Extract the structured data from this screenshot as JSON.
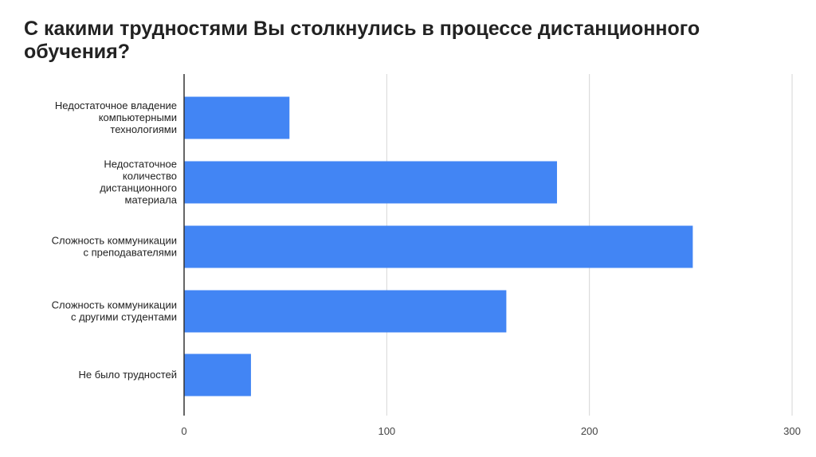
{
  "chart_data": {
    "type": "bar",
    "orientation": "horizontal",
    "title": "С какими трудностями Вы столкнулись в процессе дистанционного обучения?",
    "categories": [
      "Недостаточное владение компьютерными технологиями",
      "Недостаточное количество дистанционного материала",
      "Сложность коммуникации с преподавателями",
      "Сложность коммуникации с другими студентами",
      "Не было трудностей"
    ],
    "category_lines": [
      [
        "Недостаточное владение",
        "компьютерными",
        "технологиями"
      ],
      [
        "Недостаточное",
        "количество",
        "дистанционного",
        "материала"
      ],
      [
        "Сложность коммуникации",
        "с преподавателями"
      ],
      [
        "Сложность коммуникации",
        "с другими студентами"
      ],
      [
        "Не было трудностей"
      ]
    ],
    "values": [
      52,
      184,
      251,
      159,
      33
    ],
    "xlim": [
      0,
      300
    ],
    "xticks": [
      0,
      100,
      200,
      300
    ],
    "xlabel": "",
    "ylabel": "",
    "grid": true,
    "legend": "none",
    "bar_color": "#4285f4"
  }
}
